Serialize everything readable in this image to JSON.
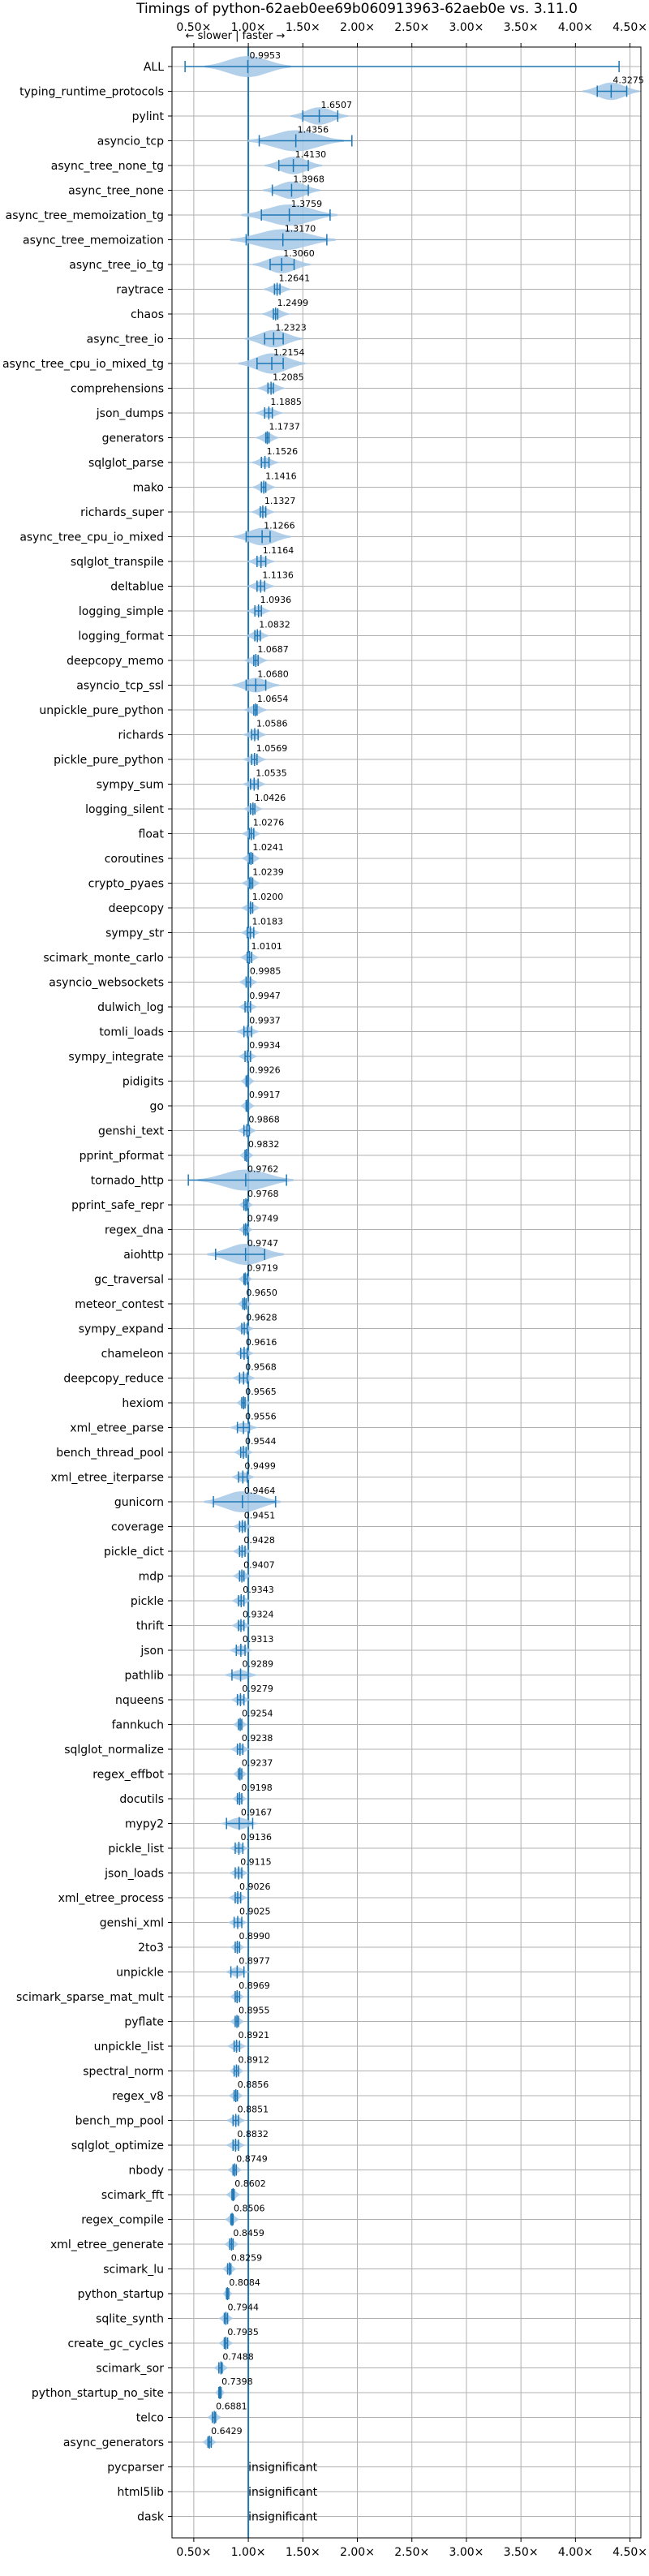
{
  "chart_data": {
    "type": "violin",
    "title": "Timings of python-62aeb0ee69b060913963-62aeb0e vs. 3.11.0",
    "direction_hint": "← slower | faster →",
    "xlim": [
      0.3,
      4.6
    ],
    "x_ticks": [
      0.5,
      1.0,
      1.5,
      2.0,
      2.5,
      3.0,
      3.5,
      4.0,
      4.5
    ],
    "x_tick_labels": [
      "0.50×",
      "1.00×",
      "1.50×",
      "2.00×",
      "2.50×",
      "3.00×",
      "3.50×",
      "4.00×",
      "4.50×"
    ],
    "reference_line": 1.0,
    "grid": true,
    "insignificant_text": "insignificant",
    "benchmarks": [
      {
        "name": "ALL",
        "value": 0.9953,
        "label": "0.9953",
        "min": 0.42,
        "max": 4.4,
        "spread": 0.18
      },
      {
        "name": "typing_runtime_protocols",
        "value": 4.3275,
        "label": "4.3275",
        "min": 4.2,
        "max": 4.47,
        "spread": 0.12
      },
      {
        "name": "pylint",
        "value": 1.6507,
        "label": "1.6507",
        "min": 1.5,
        "max": 1.82,
        "spread": 0.12
      },
      {
        "name": "asyncio_tcp",
        "value": 1.4356,
        "label": "1.4356",
        "min": 1.1,
        "max": 1.95,
        "spread": 0.2
      },
      {
        "name": "async_tree_none_tg",
        "value": 1.413,
        "label": "1.4130",
        "min": 1.28,
        "max": 1.55,
        "spread": 0.12
      },
      {
        "name": "async_tree_none",
        "value": 1.3968,
        "label": "1.3968",
        "min": 1.22,
        "max": 1.55,
        "spread": 0.12
      },
      {
        "name": "async_tree_memoization_tg",
        "value": 1.3759,
        "label": "1.3759",
        "min": 1.12,
        "max": 1.75,
        "spread": 0.2
      },
      {
        "name": "async_tree_memoization",
        "value": 1.317,
        "label": "1.3170",
        "min": 0.98,
        "max": 1.72,
        "spread": 0.22
      },
      {
        "name": "async_tree_io_tg",
        "value": 1.306,
        "label": "1.3060",
        "min": 1.2,
        "max": 1.42,
        "spread": 0.12
      },
      {
        "name": "raytrace",
        "value": 1.2641,
        "label": "1.2641",
        "min": 1.24,
        "max": 1.29,
        "spread": 0.06
      },
      {
        "name": "chaos",
        "value": 1.2499,
        "label": "1.2499",
        "min": 1.23,
        "max": 1.27,
        "spread": 0.06
      },
      {
        "name": "async_tree_io",
        "value": 1.2323,
        "label": "1.2323",
        "min": 1.15,
        "max": 1.32,
        "spread": 0.12
      },
      {
        "name": "async_tree_cpu_io_mixed_tg",
        "value": 1.2154,
        "label": "1.2154",
        "min": 1.08,
        "max": 1.32,
        "spread": 0.14
      },
      {
        "name": "comprehensions",
        "value": 1.2085,
        "label": "1.2085",
        "min": 1.18,
        "max": 1.23,
        "spread": 0.06
      },
      {
        "name": "json_dumps",
        "value": 1.1885,
        "label": "1.1885",
        "min": 1.15,
        "max": 1.22,
        "spread": 0.06
      },
      {
        "name": "generators",
        "value": 1.1737,
        "label": "1.1737",
        "min": 1.16,
        "max": 1.19,
        "spread": 0.05
      },
      {
        "name": "sqlglot_parse",
        "value": 1.1526,
        "label": "1.1526",
        "min": 1.12,
        "max": 1.19,
        "spread": 0.06
      },
      {
        "name": "mako",
        "value": 1.1416,
        "label": "1.1416",
        "min": 1.12,
        "max": 1.16,
        "spread": 0.05
      },
      {
        "name": "richards_super",
        "value": 1.1327,
        "label": "1.1327",
        "min": 1.11,
        "max": 1.16,
        "spread": 0.05
      },
      {
        "name": "async_tree_cpu_io_mixed",
        "value": 1.1266,
        "label": "1.1266",
        "min": 0.98,
        "max": 1.2,
        "spread": 0.12
      },
      {
        "name": "sqlglot_transpile",
        "value": 1.1164,
        "label": "1.1164",
        "min": 1.08,
        "max": 1.16,
        "spread": 0.06
      },
      {
        "name": "deltablue",
        "value": 1.1136,
        "label": "1.1136",
        "min": 1.08,
        "max": 1.15,
        "spread": 0.06
      },
      {
        "name": "logging_simple",
        "value": 1.0936,
        "label": "1.0936",
        "min": 1.06,
        "max": 1.12,
        "spread": 0.05
      },
      {
        "name": "logging_format",
        "value": 1.0832,
        "label": "1.0832",
        "min": 1.06,
        "max": 1.11,
        "spread": 0.05
      },
      {
        "name": "deepcopy_memo",
        "value": 1.0687,
        "label": "1.0687",
        "min": 1.05,
        "max": 1.09,
        "spread": 0.05
      },
      {
        "name": "asyncio_tcp_ssl",
        "value": 1.068,
        "label": "1.0680",
        "min": 0.98,
        "max": 1.16,
        "spread": 0.1
      },
      {
        "name": "unpickle_pure_python",
        "value": 1.0654,
        "label": "1.0654",
        "min": 1.05,
        "max": 1.08,
        "spread": 0.05
      },
      {
        "name": "richards",
        "value": 1.0586,
        "label": "1.0586",
        "min": 1.03,
        "max": 1.09,
        "spread": 0.05
      },
      {
        "name": "pickle_pure_python",
        "value": 1.0569,
        "label": "1.0569",
        "min": 1.03,
        "max": 1.08,
        "spread": 0.05
      },
      {
        "name": "sympy_sum",
        "value": 1.0535,
        "label": "1.0535",
        "min": 1.02,
        "max": 1.09,
        "spread": 0.05
      },
      {
        "name": "logging_silent",
        "value": 1.0426,
        "label": "1.0426",
        "min": 1.02,
        "max": 1.06,
        "spread": 0.04
      },
      {
        "name": "float",
        "value": 1.0276,
        "label": "1.0276",
        "min": 1.01,
        "max": 1.05,
        "spread": 0.04
      },
      {
        "name": "coroutines",
        "value": 1.0241,
        "label": "1.0241",
        "min": 1.01,
        "max": 1.04,
        "spread": 0.04
      },
      {
        "name": "crypto_pyaes",
        "value": 1.0239,
        "label": "1.0239",
        "min": 1.01,
        "max": 1.04,
        "spread": 0.04
      },
      {
        "name": "deepcopy",
        "value": 1.02,
        "label": "1.0200",
        "min": 1.0,
        "max": 1.04,
        "spread": 0.04
      },
      {
        "name": "sympy_str",
        "value": 1.0183,
        "label": "1.0183",
        "min": 0.99,
        "max": 1.05,
        "spread": 0.04
      },
      {
        "name": "scimark_monte_carlo",
        "value": 1.0101,
        "label": "1.0101",
        "min": 0.99,
        "max": 1.03,
        "spread": 0.04
      },
      {
        "name": "asyncio_websockets",
        "value": 0.9985,
        "label": "0.9985",
        "min": 0.98,
        "max": 1.02,
        "spread": 0.04
      },
      {
        "name": "dulwich_log",
        "value": 0.9947,
        "label": "0.9947",
        "min": 0.97,
        "max": 1.02,
        "spread": 0.04
      },
      {
        "name": "tomli_loads",
        "value": 0.9937,
        "label": "0.9937",
        "min": 0.96,
        "max": 1.03,
        "spread": 0.05
      },
      {
        "name": "sympy_integrate",
        "value": 0.9934,
        "label": "0.9934",
        "min": 0.97,
        "max": 1.02,
        "spread": 0.04
      },
      {
        "name": "pidigits",
        "value": 0.9926,
        "label": "0.9926",
        "min": 0.98,
        "max": 1.0,
        "spread": 0.03
      },
      {
        "name": "go",
        "value": 0.9917,
        "label": "0.9917",
        "min": 0.98,
        "max": 1.0,
        "spread": 0.03
      },
      {
        "name": "genshi_text",
        "value": 0.9868,
        "label": "0.9868",
        "min": 0.96,
        "max": 1.01,
        "spread": 0.04
      },
      {
        "name": "pprint_pformat",
        "value": 0.9832,
        "label": "0.9832",
        "min": 0.97,
        "max": 1.0,
        "spread": 0.03
      },
      {
        "name": "tornado_http",
        "value": 0.9762,
        "label": "0.9762",
        "min": 0.45,
        "max": 1.35,
        "spread": 0.2
      },
      {
        "name": "pprint_safe_repr",
        "value": 0.9768,
        "label": "0.9768",
        "min": 0.96,
        "max": 0.99,
        "spread": 0.03
      },
      {
        "name": "regex_dna",
        "value": 0.9749,
        "label": "0.9749",
        "min": 0.96,
        "max": 0.99,
        "spread": 0.03
      },
      {
        "name": "aiohttp",
        "value": 0.9747,
        "label": "0.9747",
        "min": 0.7,
        "max": 1.15,
        "spread": 0.16
      },
      {
        "name": "gc_traversal",
        "value": 0.9719,
        "label": "0.9719",
        "min": 0.96,
        "max": 0.99,
        "spread": 0.03
      },
      {
        "name": "meteor_contest",
        "value": 0.965,
        "label": "0.9650",
        "min": 0.95,
        "max": 0.98,
        "spread": 0.03
      },
      {
        "name": "sympy_expand",
        "value": 0.9628,
        "label": "0.9628",
        "min": 0.94,
        "max": 0.99,
        "spread": 0.04
      },
      {
        "name": "chameleon",
        "value": 0.9616,
        "label": "0.9616",
        "min": 0.93,
        "max": 0.99,
        "spread": 0.04
      },
      {
        "name": "deepcopy_reduce",
        "value": 0.9568,
        "label": "0.9568",
        "min": 0.92,
        "max": 0.99,
        "spread": 0.05
      },
      {
        "name": "hexiom",
        "value": 0.9565,
        "label": "0.9565",
        "min": 0.94,
        "max": 0.97,
        "spread": 0.03
      },
      {
        "name": "xml_etree_parse",
        "value": 0.9556,
        "label": "0.9556",
        "min": 0.9,
        "max": 1.01,
        "spread": 0.06
      },
      {
        "name": "bench_thread_pool",
        "value": 0.9544,
        "label": "0.9544",
        "min": 0.93,
        "max": 0.98,
        "spread": 0.04
      },
      {
        "name": "xml_etree_iterparse",
        "value": 0.9499,
        "label": "0.9499",
        "min": 0.91,
        "max": 0.99,
        "spread": 0.05
      },
      {
        "name": "gunicorn",
        "value": 0.9464,
        "label": "0.9464",
        "min": 0.68,
        "max": 1.25,
        "spread": 0.16
      },
      {
        "name": "coverage",
        "value": 0.9451,
        "label": "0.9451",
        "min": 0.92,
        "max": 0.97,
        "spread": 0.04
      },
      {
        "name": "pickle_dict",
        "value": 0.9428,
        "label": "0.9428",
        "min": 0.92,
        "max": 0.97,
        "spread": 0.04
      },
      {
        "name": "mdp",
        "value": 0.9407,
        "label": "0.9407",
        "min": 0.92,
        "max": 0.96,
        "spread": 0.04
      },
      {
        "name": "pickle",
        "value": 0.9343,
        "label": "0.9343",
        "min": 0.91,
        "max": 0.96,
        "spread": 0.04
      },
      {
        "name": "thrift",
        "value": 0.9324,
        "label": "0.9324",
        "min": 0.91,
        "max": 0.96,
        "spread": 0.04
      },
      {
        "name": "json",
        "value": 0.9313,
        "label": "0.9313",
        "min": 0.89,
        "max": 0.97,
        "spread": 0.05
      },
      {
        "name": "pathlib",
        "value": 0.9289,
        "label": "0.9289",
        "min": 0.85,
        "max": 1.0,
        "spread": 0.07
      },
      {
        "name": "nqueens",
        "value": 0.9279,
        "label": "0.9279",
        "min": 0.9,
        "max": 0.96,
        "spread": 0.04
      },
      {
        "name": "fannkuch",
        "value": 0.9254,
        "label": "0.9254",
        "min": 0.91,
        "max": 0.94,
        "spread": 0.03
      },
      {
        "name": "sqlglot_normalize",
        "value": 0.9238,
        "label": "0.9238",
        "min": 0.9,
        "max": 0.95,
        "spread": 0.04
      },
      {
        "name": "regex_effbot",
        "value": 0.9237,
        "label": "0.9237",
        "min": 0.91,
        "max": 0.94,
        "spread": 0.03
      },
      {
        "name": "docutils",
        "value": 0.9198,
        "label": "0.9198",
        "min": 0.9,
        "max": 0.94,
        "spread": 0.03
      },
      {
        "name": "mypy2",
        "value": 0.9167,
        "label": "0.9167",
        "min": 0.8,
        "max": 1.04,
        "spread": 0.08
      },
      {
        "name": "pickle_list",
        "value": 0.9136,
        "label": "0.9136",
        "min": 0.88,
        "max": 0.95,
        "spread": 0.04
      },
      {
        "name": "json_loads",
        "value": 0.9115,
        "label": "0.9115",
        "min": 0.88,
        "max": 0.94,
        "spread": 0.04
      },
      {
        "name": "xml_etree_process",
        "value": 0.9026,
        "label": "0.9026",
        "min": 0.88,
        "max": 0.93,
        "spread": 0.04
      },
      {
        "name": "genshi_xml",
        "value": 0.9025,
        "label": "0.9025",
        "min": 0.87,
        "max": 0.94,
        "spread": 0.04
      },
      {
        "name": "2to3",
        "value": 0.899,
        "label": "0.8990",
        "min": 0.88,
        "max": 0.92,
        "spread": 0.03
      },
      {
        "name": "unpickle",
        "value": 0.8977,
        "label": "0.8977",
        "min": 0.84,
        "max": 0.96,
        "spread": 0.05
      },
      {
        "name": "scimark_sparse_mat_mult",
        "value": 0.8969,
        "label": "0.8969",
        "min": 0.88,
        "max": 0.92,
        "spread": 0.03
      },
      {
        "name": "pyflate",
        "value": 0.8955,
        "label": "0.8955",
        "min": 0.88,
        "max": 0.91,
        "spread": 0.03
      },
      {
        "name": "unpickle_list",
        "value": 0.8921,
        "label": "0.8921",
        "min": 0.87,
        "max": 0.92,
        "spread": 0.04
      },
      {
        "name": "spectral_norm",
        "value": 0.8912,
        "label": "0.8912",
        "min": 0.87,
        "max": 0.91,
        "spread": 0.03
      },
      {
        "name": "regex_v8",
        "value": 0.8856,
        "label": "0.8856",
        "min": 0.87,
        "max": 0.9,
        "spread": 0.03
      },
      {
        "name": "bench_mp_pool",
        "value": 0.8851,
        "label": "0.8851",
        "min": 0.86,
        "max": 0.91,
        "spread": 0.04
      },
      {
        "name": "sqlglot_optimize",
        "value": 0.8832,
        "label": "0.8832",
        "min": 0.86,
        "max": 0.91,
        "spread": 0.04
      },
      {
        "name": "nbody",
        "value": 0.8749,
        "label": "0.8749",
        "min": 0.86,
        "max": 0.89,
        "spread": 0.03
      },
      {
        "name": "scimark_fft",
        "value": 0.8602,
        "label": "0.8602",
        "min": 0.85,
        "max": 0.87,
        "spread": 0.03
      },
      {
        "name": "regex_compile",
        "value": 0.8506,
        "label": "0.8506",
        "min": 0.84,
        "max": 0.86,
        "spread": 0.03
      },
      {
        "name": "xml_etree_generate",
        "value": 0.8459,
        "label": "0.8459",
        "min": 0.83,
        "max": 0.86,
        "spread": 0.03
      },
      {
        "name": "scimark_lu",
        "value": 0.8259,
        "label": "0.8259",
        "min": 0.81,
        "max": 0.84,
        "spread": 0.03
      },
      {
        "name": "python_startup",
        "value": 0.8084,
        "label": "0.8084",
        "min": 0.8,
        "max": 0.82,
        "spread": 0.02
      },
      {
        "name": "sqlite_synth",
        "value": 0.7944,
        "label": "0.7944",
        "min": 0.78,
        "max": 0.81,
        "spread": 0.03
      },
      {
        "name": "create_gc_cycles",
        "value": 0.7935,
        "label": "0.7935",
        "min": 0.78,
        "max": 0.81,
        "spread": 0.03
      },
      {
        "name": "scimark_sor",
        "value": 0.7488,
        "label": "0.7488",
        "min": 0.73,
        "max": 0.76,
        "spread": 0.03
      },
      {
        "name": "python_startup_no_site",
        "value": 0.7398,
        "label": "0.7398",
        "min": 0.73,
        "max": 0.75,
        "spread": 0.02
      },
      {
        "name": "telco",
        "value": 0.6881,
        "label": "0.6881",
        "min": 0.67,
        "max": 0.7,
        "spread": 0.03
      },
      {
        "name": "async_generators",
        "value": 0.6429,
        "label": "0.6429",
        "min": 0.63,
        "max": 0.66,
        "spread": 0.03
      },
      {
        "name": "pycparser",
        "value": null,
        "label": "insignificant"
      },
      {
        "name": "html5lib",
        "value": null,
        "label": "insignificant"
      },
      {
        "name": "dask",
        "value": null,
        "label": "insignificant"
      }
    ]
  },
  "colors": {
    "violin_fill": "#a6c8e6",
    "line": "#1f77b4",
    "grid": "#b0b0b0"
  }
}
